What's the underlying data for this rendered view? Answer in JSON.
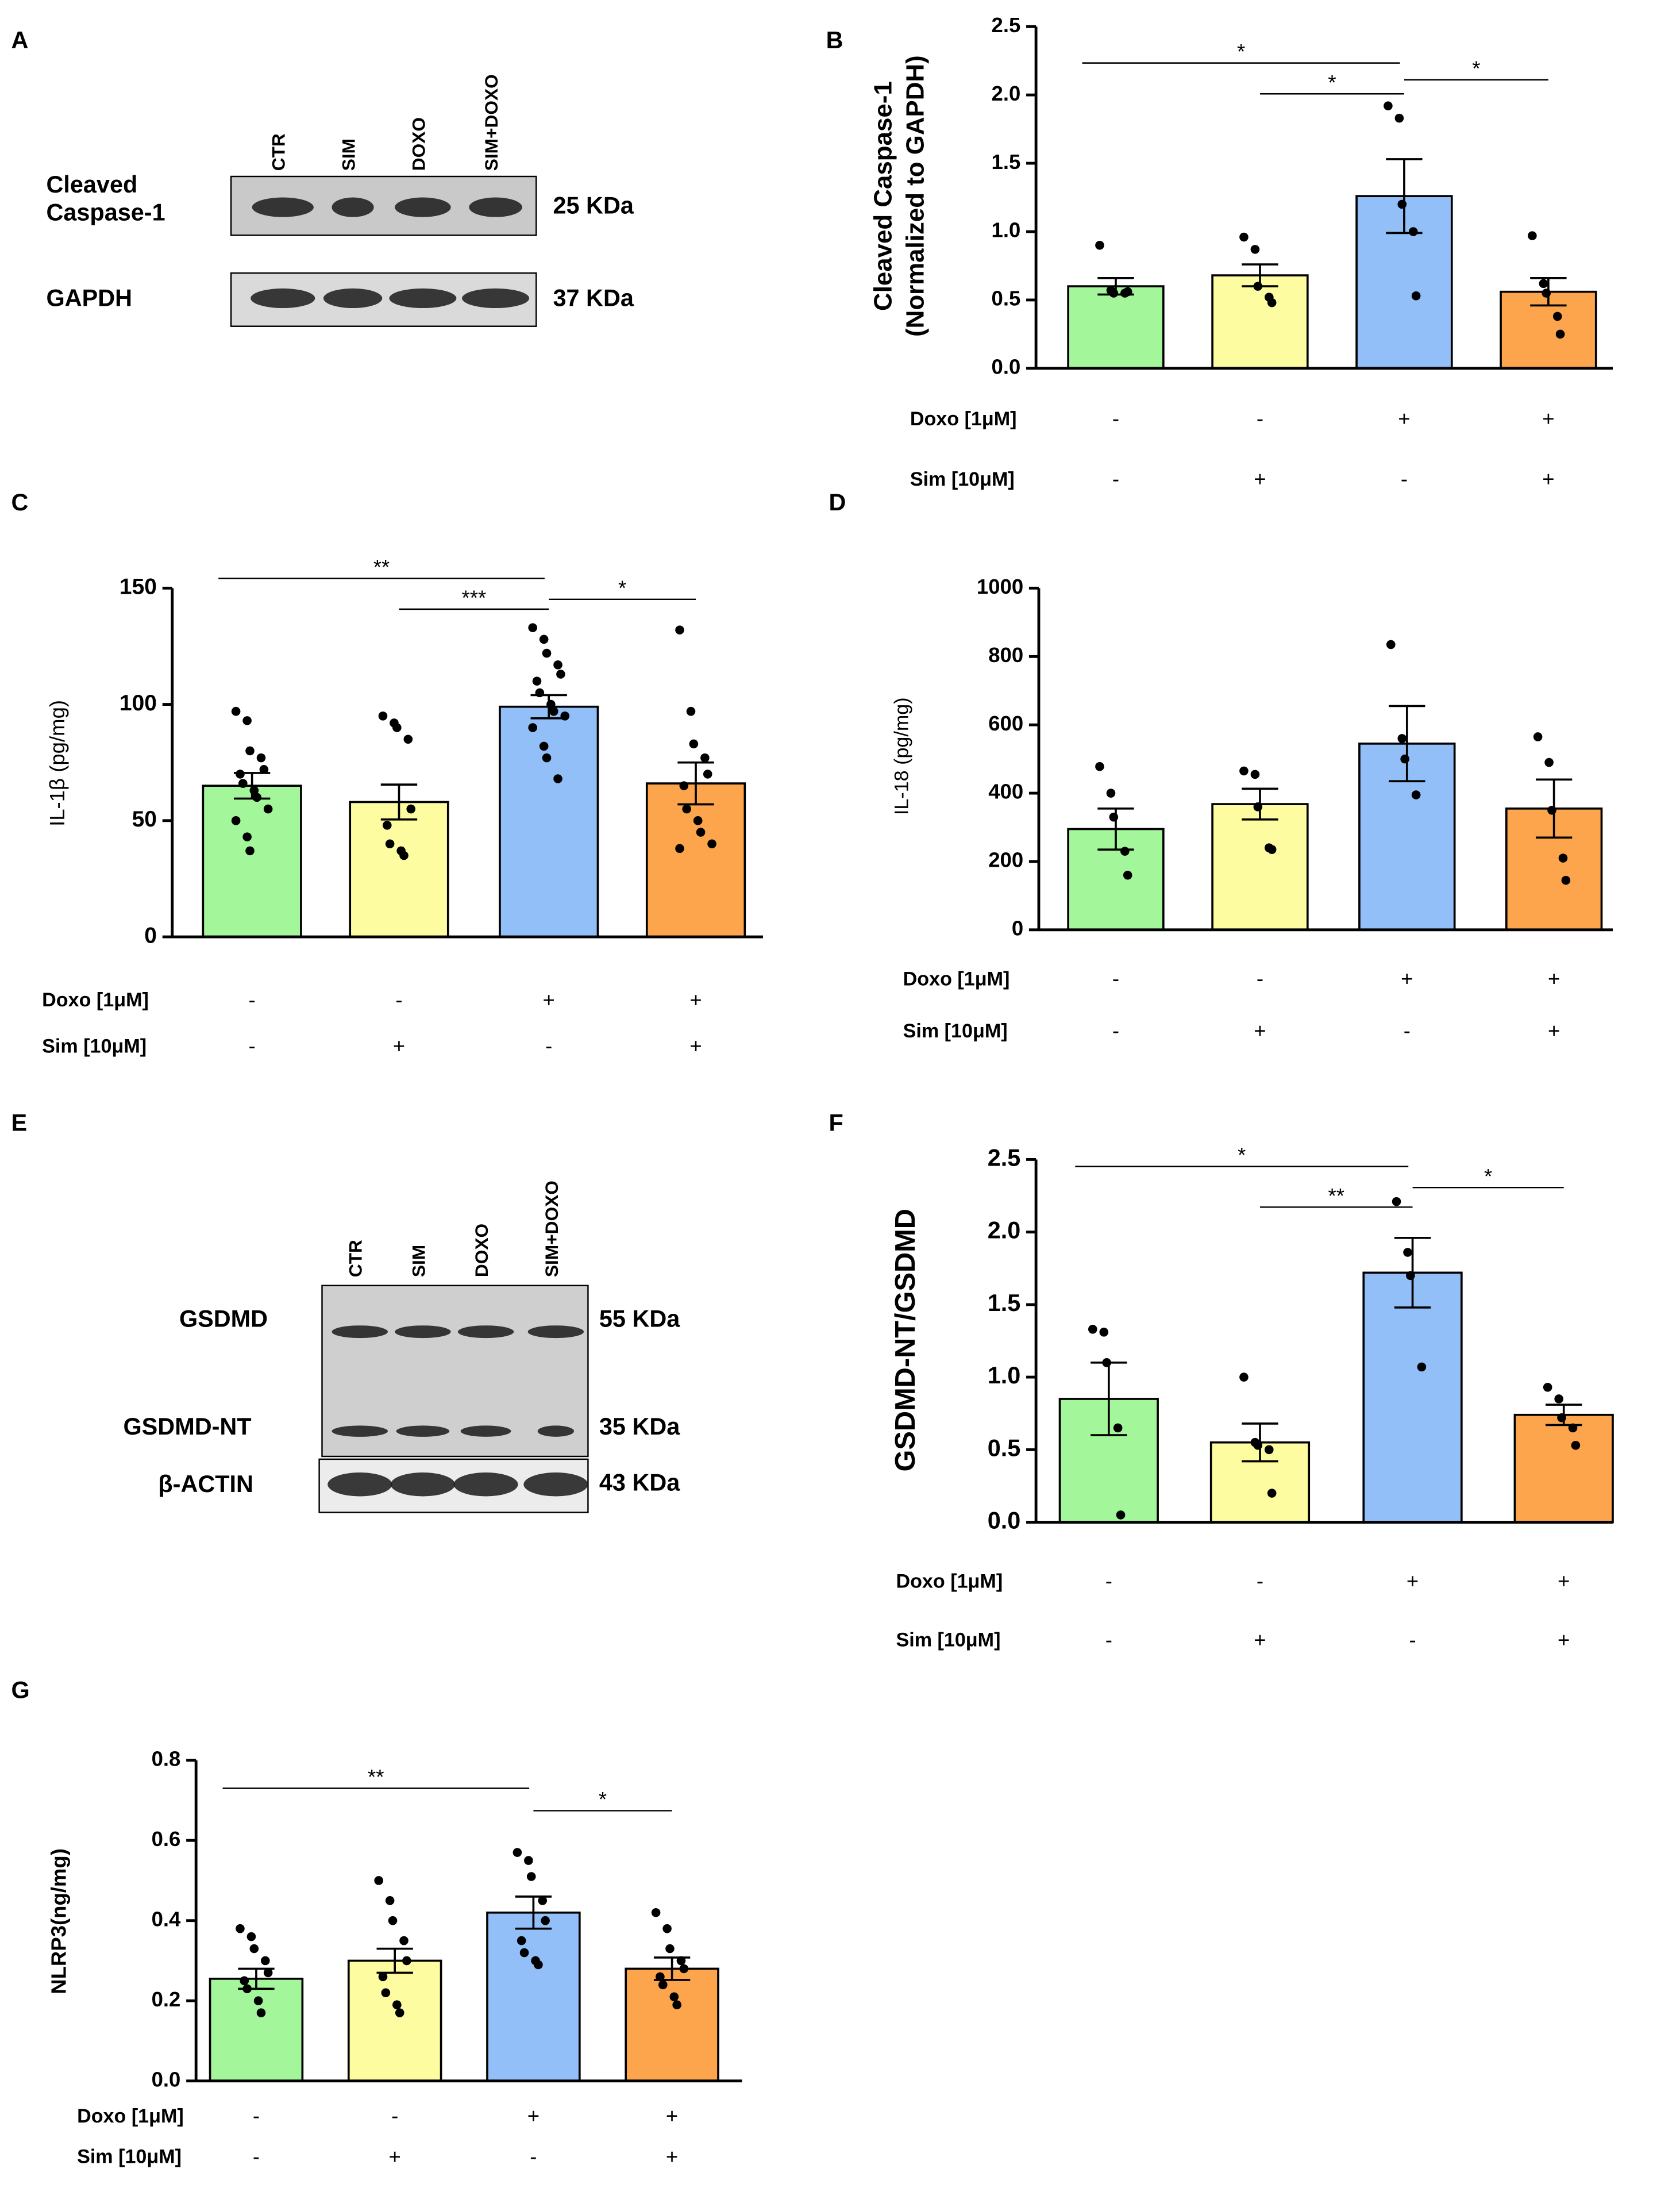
{
  "blots": [
    {
      "letter": "A",
      "lanes": [
        "CTR",
        "SIM",
        "DOXO",
        "SIM+DOXO"
      ],
      "rows": [
        {
          "protein": [
            "Cleaved",
            "Caspase-1"
          ],
          "size": "25 KDa"
        },
        {
          "protein": [
            "GAPDH"
          ],
          "size": "37 KDa"
        }
      ]
    },
    {
      "letter": "E",
      "lanes": [
        "CTR",
        "SIM",
        "DOXO",
        "SIM+DOXO"
      ],
      "rows": [
        {
          "protein": [
            "GSDMD"
          ],
          "size": "55 KDa"
        },
        {
          "protein": [
            "GSDMD-NT"
          ],
          "size": "35 KDa"
        },
        {
          "protein": [
            "β-ACTIN"
          ],
          "size": "43 KDa"
        }
      ]
    }
  ],
  "chart_data": [
    {
      "type": "bar",
      "letter": "B",
      "ylabel": [
        "Cleaved Caspase-1",
        "(Normalized to GAPDH)"
      ],
      "colors": [
        "#a3f79a",
        "#fdfca0",
        "#92bff7",
        "#fca54c"
      ],
      "values": [
        0.6,
        0.68,
        1.26,
        0.56
      ],
      "errors": [
        0.06,
        0.08,
        0.27,
        0.1
      ],
      "points": [
        [
          0.9,
          0.57,
          0.55,
          0.55,
          0.56
        ],
        [
          0.96,
          0.87,
          0.6,
          0.52,
          0.48
        ],
        [
          1.92,
          1.83,
          1.2,
          1.0,
          0.53
        ],
        [
          0.97,
          0.62,
          0.55,
          0.38,
          0.25
        ]
      ],
      "ylim": [
        0,
        2.5
      ],
      "yticks": [
        {
          "value": 0,
          "label": "0.0"
        },
        {
          "value": 0.5,
          "label": "0.5"
        },
        {
          "value": 1,
          "label": "1.0"
        },
        {
          "value": 1.5,
          "label": "1.5"
        },
        {
          "value": 2,
          "label": "2.0"
        },
        {
          "value": 2.5,
          "label": "2.5"
        }
      ],
      "brackets": [
        {
          "groups": [
            0,
            2
          ],
          "label": "*"
        },
        {
          "groups": [
            1,
            2
          ],
          "label": "*"
        },
        {
          "groups": [
            2,
            3
          ],
          "label": "*"
        }
      ],
      "conditions": [
        {
          "label": "Doxo [1μM]",
          "signs": [
            "-",
            "-",
            "+",
            "+"
          ]
        },
        {
          "label": "Sim [10μM]",
          "signs": [
            "-",
            "+",
            "-",
            "+"
          ]
        }
      ]
    },
    {
      "type": "bar",
      "letter": "C",
      "ylabel": [
        "IL-1β (pg/mg)"
      ],
      "colors": [
        "#a3f79a",
        "#fdfca0",
        "#92bff7",
        "#fca54c"
      ],
      "values": [
        65,
        58,
        99,
        66
      ],
      "errors": [
        5.5,
        7.5,
        5,
        9
      ],
      "points": [
        [
          97,
          93,
          80,
          77,
          72,
          70,
          66,
          63,
          60,
          55,
          50,
          43,
          37
        ],
        [
          95,
          92,
          90,
          85,
          55,
          48,
          40,
          37,
          35
        ],
        [
          133,
          128,
          122,
          117,
          113,
          110,
          105,
          100,
          97,
          95,
          90,
          82,
          77,
          68
        ],
        [
          132,
          97,
          83,
          77,
          70,
          65,
          55,
          50,
          45,
          40,
          38
        ]
      ],
      "ylim": [
        0,
        150
      ],
      "yticks": [
        0,
        50,
        100,
        150
      ],
      "brackets": [
        {
          "groups": [
            0,
            2
          ],
          "label": "**"
        },
        {
          "groups": [
            1,
            2
          ],
          "label": "***"
        },
        {
          "groups": [
            2,
            3
          ],
          "label": "*"
        }
      ],
      "conditions": [
        {
          "label": "Doxo [1μM]",
          "signs": [
            "-",
            "-",
            "+",
            "+"
          ]
        },
        {
          "label": "Sim [10μM]",
          "signs": [
            "-",
            "+",
            "-",
            "+"
          ]
        }
      ]
    },
    {
      "type": "bar",
      "letter": "D",
      "ylabel": [
        "IL-18 (pg/mg)"
      ],
      "colors": [
        "#a3f79a",
        "#fdfca0",
        "#92bff7",
        "#fca54c"
      ],
      "values": [
        295,
        368,
        545,
        355
      ],
      "errors": [
        60,
        45,
        110,
        85
      ],
      "points": [
        [
          478,
          400,
          330,
          230,
          160
        ],
        [
          465,
          455,
          360,
          240,
          235
        ],
        [
          835,
          560,
          500,
          395
        ],
        [
          565,
          490,
          350,
          210,
          145
        ]
      ],
      "ylim": [
        0,
        1000
      ],
      "yticks": [
        0,
        200,
        400,
        600,
        800,
        1000
      ],
      "brackets": [],
      "conditions": [
        {
          "label": "Doxo [1μM]",
          "signs": [
            "-",
            "-",
            "+",
            "+"
          ]
        },
        {
          "label": "Sim [10μM]",
          "signs": [
            "-",
            "+",
            "-",
            "+"
          ]
        }
      ]
    },
    {
      "type": "bar",
      "letter": "F",
      "ylabel": [
        "GSDMD-NT/GSDMD"
      ],
      "colors": [
        "#a3f79a",
        "#fdfca0",
        "#92bff7",
        "#fca54c"
      ],
      "values": [
        0.85,
        0.55,
        1.72,
        0.74
      ],
      "errors": [
        0.25,
        0.13,
        0.24,
        0.07
      ],
      "points": [
        [
          1.33,
          1.31,
          1.1,
          0.65,
          0.05
        ],
        [
          1.0,
          0.55,
          0.53,
          0.5,
          0.2
        ],
        [
          2.21,
          1.86,
          1.7,
          1.07
        ],
        [
          0.93,
          0.85,
          0.72,
          0.65,
          0.53
        ]
      ],
      "ylim": [
        0,
        2.5
      ],
      "yticks": [
        {
          "value": 0,
          "label": "0.0"
        },
        {
          "value": 0.5,
          "label": "0.5"
        },
        {
          "value": 1,
          "label": "1.0"
        },
        {
          "value": 1.5,
          "label": "1.5"
        },
        {
          "value": 2,
          "label": "2.0"
        },
        {
          "value": 2.5,
          "label": "2.5"
        }
      ],
      "brackets": [
        {
          "groups": [
            0,
            2
          ],
          "label": "*"
        },
        {
          "groups": [
            1,
            2
          ],
          "label": "**"
        },
        {
          "groups": [
            2,
            3
          ],
          "label": "*"
        }
      ],
      "conditions": [
        {
          "label": "Doxo [1μM]",
          "signs": [
            "-",
            "-",
            "+",
            "+"
          ]
        },
        {
          "label": "Sim [10μM]",
          "signs": [
            "-",
            "+",
            "-",
            "+"
          ]
        }
      ]
    },
    {
      "type": "bar",
      "letter": "G",
      "ylabel": [
        "NLRP3(ng/mg)"
      ],
      "colors": [
        "#a3f79a",
        "#fdfca0",
        "#92bff7",
        "#fca54c"
      ],
      "values": [
        0.255,
        0.3,
        0.42,
        0.28
      ],
      "errors": [
        0.025,
        0.03,
        0.04,
        0.028
      ],
      "points": [
        [
          0.38,
          0.36,
          0.33,
          0.3,
          0.27,
          0.25,
          0.23,
          0.2,
          0.17
        ],
        [
          0.5,
          0.45,
          0.4,
          0.35,
          0.3,
          0.26,
          0.22,
          0.19,
          0.17
        ],
        [
          0.57,
          0.55,
          0.51,
          0.45,
          0.4,
          0.35,
          0.32,
          0.3,
          0.29
        ],
        [
          0.42,
          0.38,
          0.33,
          0.3,
          0.28,
          0.26,
          0.24,
          0.21,
          0.19
        ]
      ],
      "ylim": [
        0,
        0.8
      ],
      "yticks": [
        {
          "value": 0,
          "label": "0.0"
        },
        {
          "value": 0.2,
          "label": "0.2"
        },
        {
          "value": 0.4,
          "label": "0.4"
        },
        {
          "value": 0.6,
          "label": "0.6"
        },
        {
          "value": 0.8,
          "label": "0.8"
        }
      ],
      "brackets": [
        {
          "groups": [
            0,
            2
          ],
          "label": "**"
        },
        {
          "groups": [
            2,
            3
          ],
          "label": "*"
        }
      ],
      "conditions": [
        {
          "label": "Doxo [1μM]",
          "signs": [
            "-",
            "-",
            "+",
            "+"
          ]
        },
        {
          "label": "Sim [10μM]",
          "signs": [
            "-",
            "+",
            "-",
            "+"
          ]
        }
      ]
    }
  ]
}
